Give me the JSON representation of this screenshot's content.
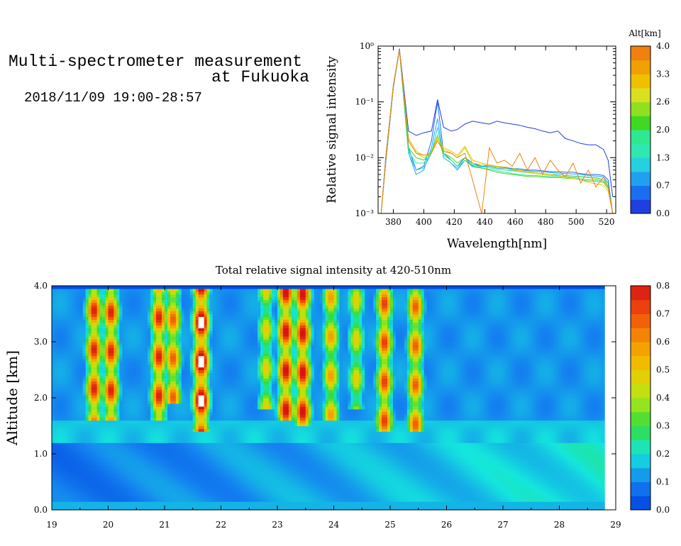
{
  "header": {
    "title_line1": "Multi-spectrometer measurement",
    "title_line2": "at Fukuoka",
    "date_range": "2018/11/09 19:00-28:57"
  },
  "chart_data": [
    {
      "type": "line",
      "xlabel": "Wavelength[nm]",
      "ylabel": "Relative signal intensity",
      "yscale": "log",
      "xlim": [
        370,
        526
      ],
      "ylim": [
        0.001,
        1
      ],
      "x_ticks": [
        "380",
        "400",
        "420",
        "440",
        "460",
        "480",
        "500",
        "520"
      ],
      "y_ticks": [
        "10⁻³",
        "10⁻²",
        "10⁻¹",
        "10⁰"
      ],
      "legend_title": "Alt[km]",
      "legend_ticks": [
        "0.0",
        "0.7",
        "1.3",
        "2.0",
        "2.6",
        "3.3",
        "4.0"
      ],
      "x": [
        372,
        375,
        380,
        384,
        390,
        395,
        400,
        405,
        409,
        413,
        418,
        422,
        427,
        432,
        438,
        443,
        448,
        453,
        458,
        463,
        468,
        473,
        478,
        483,
        488,
        493,
        498,
        503,
        508,
        513,
        518,
        521,
        524
      ],
      "series": [
        {
          "color": "#1f3fe0",
          "values": [
            0.001,
            0.01,
            0.2,
            0.9,
            0.03,
            0.025,
            0.028,
            0.03,
            0.11,
            0.035,
            0.03,
            0.032,
            0.04,
            0.045,
            0.042,
            0.04,
            0.045,
            0.042,
            0.04,
            0.038,
            0.035,
            0.033,
            0.03,
            0.028,
            0.03,
            0.022,
            0.02,
            0.018,
            0.017,
            0.017,
            0.014,
            0.009,
            0.002
          ]
        },
        {
          "color": "#1a6ef0",
          "values": [
            0.001,
            0.008,
            0.18,
            0.9,
            0.015,
            0.006,
            0.007,
            0.02,
            0.1,
            0.012,
            0.009,
            0.007,
            0.01,
            0.008,
            0.007,
            0.0072,
            0.0068,
            0.0066,
            0.0064,
            0.0063,
            0.006,
            0.006,
            0.0058,
            0.0056,
            0.0056,
            0.0055,
            0.0055,
            0.0052,
            0.005,
            0.005,
            0.0048,
            0.004,
            0.001
          ]
        },
        {
          "color": "#22a0f0",
          "values": [
            0.001,
            0.008,
            0.18,
            0.85,
            0.012,
            0.005,
            0.006,
            0.015,
            0.05,
            0.01,
            0.008,
            0.006,
            0.009,
            0.0075,
            0.007,
            0.007,
            0.0065,
            0.0064,
            0.0062,
            0.006,
            0.0058,
            0.0057,
            0.0056,
            0.0054,
            0.0053,
            0.0052,
            0.0051,
            0.005,
            0.0048,
            0.0047,
            0.0045,
            0.0035,
            0.001
          ]
        },
        {
          "color": "#25d0e0",
          "values": [
            0.001,
            0.009,
            0.2,
            0.85,
            0.012,
            0.006,
            0.0065,
            0.012,
            0.035,
            0.01,
            0.008,
            0.0065,
            0.009,
            0.007,
            0.0068,
            0.0066,
            0.0062,
            0.006,
            0.0058,
            0.0056,
            0.0054,
            0.0054,
            0.0052,
            0.005,
            0.005,
            0.0048,
            0.0047,
            0.0046,
            0.0045,
            0.0044,
            0.004,
            0.003,
            0.001
          ]
        },
        {
          "color": "#2ee890",
          "values": [
            0.001,
            0.009,
            0.2,
            0.85,
            0.013,
            0.008,
            0.008,
            0.012,
            0.025,
            0.011,
            0.009,
            0.007,
            0.009,
            0.0068,
            0.0065,
            0.0062,
            0.0058,
            0.0055,
            0.0052,
            0.005,
            0.0048,
            0.0048,
            0.0047,
            0.0046,
            0.0046,
            0.0045,
            0.0044,
            0.0042,
            0.004,
            0.004,
            0.0038,
            0.003,
            0.001
          ]
        },
        {
          "color": "#40d820",
          "values": [
            0.001,
            0.009,
            0.2,
            0.85,
            0.015,
            0.01,
            0.009,
            0.013,
            0.025,
            0.012,
            0.01,
            0.008,
            0.01,
            0.0072,
            0.0065,
            0.006,
            0.0055,
            0.0052,
            0.005,
            0.0048,
            0.0046,
            0.0046,
            0.0045,
            0.0044,
            0.0044,
            0.0043,
            0.0042,
            0.004,
            0.0038,
            0.0038,
            0.0036,
            0.0028,
            0.001
          ]
        },
        {
          "color": "#b0e020",
          "values": [
            0.001,
            0.009,
            0.2,
            0.85,
            0.02,
            0.012,
            0.01,
            0.012,
            0.024,
            0.014,
            0.012,
            0.01,
            0.015,
            0.008,
            0.0075,
            0.0072,
            0.0068,
            0.0065,
            0.006,
            0.0058,
            0.0054,
            0.0052,
            0.005,
            0.0048,
            0.0047,
            0.0046,
            0.0045,
            0.0045,
            0.0044,
            0.0042,
            0.004,
            0.003,
            0.001
          ]
        },
        {
          "color": "#f0c000",
          "values": [
            0.001,
            0.009,
            0.2,
            0.85,
            0.022,
            0.013,
            0.011,
            0.012,
            0.022,
            0.015,
            0.013,
            0.011,
            0.016,
            0.009,
            0.008,
            0.0075,
            0.007,
            0.0068,
            0.0065,
            0.006,
            0.0056,
            0.0054,
            0.0052,
            0.005,
            0.0048,
            0.0045,
            0.0042,
            0.004,
            0.0036,
            0.0034,
            0.0032,
            0.0025,
            0.001
          ]
        },
        {
          "color": "#f08010",
          "values": [
            0.001,
            0.009,
            0.2,
            0.85,
            0.02,
            0.012,
            0.011,
            0.012,
            0.02,
            0.013,
            0.012,
            0.01,
            0.012,
            0.004,
            0.001,
            0.015,
            0.008,
            0.009,
            0.007,
            0.012,
            0.006,
            0.01,
            0.005,
            0.009,
            0.006,
            0.0045,
            0.008,
            0.0035,
            0.006,
            0.003,
            0.0045,
            0.003,
            0.001
          ]
        }
      ]
    },
    {
      "type": "heatmap",
      "title": "Total relative signal intensity at 420-510nm",
      "ylabel": "Altitude [km]",
      "xlabel": "",
      "xlim": [
        19,
        29
      ],
      "ylim": [
        0,
        4
      ],
      "x_ticks": [
        "19",
        "20",
        "21",
        "22",
        "23",
        "24",
        "25",
        "26",
        "27",
        "28",
        "29"
      ],
      "y_ticks": [
        "0.0",
        "1.0",
        "2.0",
        "3.0",
        "4.0"
      ],
      "colorbar_ticks": [
        "0.0",
        "0.1",
        "0.2",
        "0.3",
        "0.4",
        "0.5",
        "0.6",
        "0.7",
        "0.8"
      ],
      "data_end_x": 28.8,
      "background_level_low": 0.08,
      "background_level_mid": 0.2,
      "background_level_high": 0.12,
      "plumes": [
        {
          "x": 19.75,
          "y_base": 1.6,
          "peak": 0.8
        },
        {
          "x": 20.05,
          "y_base": 1.6,
          "peak": 0.8
        },
        {
          "x": 20.9,
          "y_base": 1.6,
          "peak": 0.8
        },
        {
          "x": 21.15,
          "y_base": 1.9,
          "peak": 0.7
        },
        {
          "x": 21.65,
          "y_base": 1.4,
          "peak": 1.0
        },
        {
          "x": 22.8,
          "y_base": 1.8,
          "peak": 0.5
        },
        {
          "x": 23.15,
          "y_base": 1.6,
          "peak": 0.85
        },
        {
          "x": 23.45,
          "y_base": 1.5,
          "peak": 0.85
        },
        {
          "x": 23.95,
          "y_base": 1.6,
          "peak": 0.6
        },
        {
          "x": 24.4,
          "y_base": 1.8,
          "peak": 0.5
        },
        {
          "x": 24.9,
          "y_base": 1.4,
          "peak": 0.75
        },
        {
          "x": 25.45,
          "y_base": 1.4,
          "peak": 0.7
        }
      ]
    }
  ]
}
